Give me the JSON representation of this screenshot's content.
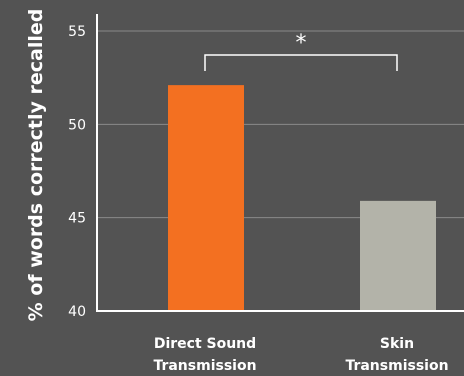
{
  "chart_data": {
    "type": "bar",
    "title": "",
    "xlabel": "",
    "ylabel": "% of words correctly recalled",
    "categories": [
      [
        "Direct Sound",
        "Transmission"
      ],
      [
        "Skin",
        "Transmission"
      ]
    ],
    "values": [
      52.1,
      45.9
    ],
    "colors": [
      "#f37021",
      "#b3b3a9"
    ],
    "ylim": [
      40,
      55
    ],
    "yticks": [
      40,
      45,
      50,
      55
    ],
    "grid": true,
    "significance": {
      "between": [
        0,
        1
      ],
      "label": "*"
    }
  },
  "colors": {
    "background": "#535353",
    "axis": "#ffffff",
    "grid": "#8a8a8a"
  }
}
